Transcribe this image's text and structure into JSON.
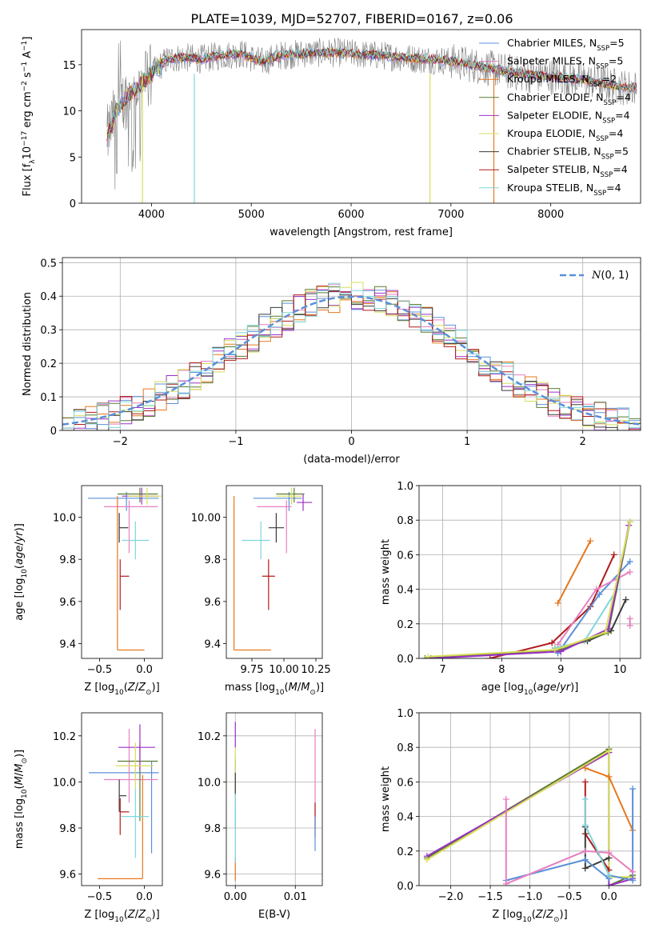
{
  "title": "PLATE=1039, MJD=52707, FIBERID=0167, z=0.06",
  "colors": {
    "Chabrier MILES": "#5b8fd9",
    "Salpeter MILES": "#e77fbf",
    "Kroupa MILES": "#e6781e",
    "Chabrier ELODIE": "#5a7a30",
    "Salpeter ELODIE": "#9b30c8",
    "Kroupa ELODIE": "#d8de5a",
    "Chabrier STELIB": "#3a3a3a",
    "Salpeter STELIB": "#b01a1a",
    "Kroupa STELIB": "#7fd6dc",
    "data": "#808080"
  },
  "chart_data": [
    {
      "id": "spectrum",
      "type": "line",
      "xlabel": "wavelength [Angstrom, rest frame]",
      "ylabel": "Flux [f_λ10^-17 erg cm^-2 s^-1 A^-1]",
      "xlim": [
        3300,
        8900
      ],
      "ylim": [
        0,
        18.8
      ],
      "xticks": [
        4000,
        5000,
        6000,
        7000,
        8000
      ],
      "yticks": [
        0,
        5,
        10,
        15
      ],
      "grid": false,
      "legend_position": "top-right",
      "legend": [
        {
          "name": "Chabrier MILES",
          "nssp": "5"
        },
        {
          "name": "Salpeter MILES",
          "nssp": "5"
        },
        {
          "name": "Kroupa MILES",
          "nssp": "2"
        },
        {
          "name": "Chabrier ELODIE",
          "nssp": "4"
        },
        {
          "name": "Salpeter ELODIE",
          "nssp": "4"
        },
        {
          "name": "Kroupa ELODIE",
          "nssp": "4"
        },
        {
          "name": "Chabrier STELIB",
          "nssp": "5"
        },
        {
          "name": "Salpeter STELIB",
          "nssp": "4"
        },
        {
          "name": "Kroupa STELIB",
          "nssp": "4"
        }
      ],
      "data_shape": {
        "x": [
          3550,
          3650,
          3750,
          3850,
          3950,
          4050,
          4150,
          4300,
          4500,
          4700,
          4900,
          5100,
          5300,
          5500,
          5700,
          5900,
          6100,
          6300,
          6500,
          6700,
          6900,
          7100,
          7300,
          7500,
          7700,
          7900,
          8100,
          8300,
          8500,
          8700,
          8800
        ],
        "y": [
          7,
          10,
          11.5,
          12.5,
          13.5,
          14.5,
          15.5,
          15.8,
          15.6,
          16.0,
          16.2,
          15.3,
          16.0,
          16.2,
          16.3,
          16.3,
          16.1,
          16.0,
          15.8,
          15.6,
          15.5,
          15.2,
          14.8,
          14.4,
          14.0,
          13.8,
          13.6,
          13.4,
          13.0,
          12.6,
          12.5
        ]
      },
      "model_drops": [
        {
          "series": "Kroupa ELODIE",
          "x": 3910
        },
        {
          "series": "Kroupa STELIB",
          "x": 4430
        },
        {
          "series": "Kroupa ELODIE",
          "x": 6790
        },
        {
          "series": "Kroupa MILES",
          "x": 7430
        }
      ]
    },
    {
      "id": "residuals",
      "type": "line",
      "xlabel": "(data-model)/error",
      "ylabel": "Normed distribution",
      "xlim": [
        -2.5,
        2.5
      ],
      "ylim": [
        0,
        0.515
      ],
      "xticks": [
        -2,
        -1,
        0,
        1,
        2
      ],
      "yticks": [
        0.0,
        0.1,
        0.2,
        0.3,
        0.4,
        0.5
      ],
      "grid": true,
      "legend_position": "top-right",
      "legend_label": "N(0,1)",
      "bin_width": 0.1,
      "gaussian": {
        "mean": 0,
        "sigma": 1
      }
    },
    {
      "id": "age_vs_Z",
      "type": "scatter",
      "xlabel": "Z [log10(Z/Z☉)]",
      "ylabel": "age  [log10(age/yr)]",
      "xlim": [
        -0.7,
        0.2
      ],
      "ylim": [
        9.33,
        10.15
      ],
      "xticks": [
        -0.5,
        0.0
      ],
      "yticks": [
        9.4,
        9.6,
        9.8,
        10.0
      ],
      "grid": false,
      "points": [
        {
          "series": "Chabrier MILES",
          "x": -0.2,
          "y": 10.09,
          "xerr": [
            0.43,
            0.36
          ],
          "yerr": [
            0.06,
            0.03
          ]
        },
        {
          "series": "Salpeter MILES",
          "x": -0.17,
          "y": 10.05,
          "xerr": [
            0.28,
            0.32
          ],
          "yerr": [
            0.22,
            0.03
          ]
        },
        {
          "series": "Kroupa MILES",
          "x": -0.3,
          "y": 9.37,
          "xerr": [
            0.0,
            0.3
          ],
          "yerr": [
            0.0,
            0.73
          ]
        },
        {
          "series": "Chabrier ELODIE",
          "x": -0.05,
          "y": 10.11,
          "xerr": [
            0.25,
            0.2
          ],
          "yerr": [
            0.04,
            0.03
          ]
        },
        {
          "series": "Salpeter ELODIE",
          "x": -0.03,
          "y": 10.1,
          "xerr": [
            0.22,
            0.18
          ],
          "yerr": [
            0.04,
            0.04
          ]
        },
        {
          "series": "Kroupa ELODIE",
          "x": 0.03,
          "y": 10.1,
          "xerr": [
            0.22,
            0.16
          ],
          "yerr": [
            0.04,
            0.04
          ]
        },
        {
          "series": "Chabrier STELIB",
          "x": -0.28,
          "y": 9.95,
          "xerr": [
            0.0,
            0.1
          ],
          "yerr": [
            0.07,
            0.07
          ]
        },
        {
          "series": "Salpeter STELIB",
          "x": -0.27,
          "y": 9.72,
          "xerr": [
            0.0,
            0.1
          ],
          "yerr": [
            0.16,
            0.08
          ]
        },
        {
          "series": "Kroupa STELIB",
          "x": -0.1,
          "y": 9.89,
          "xerr": [
            0.15,
            0.15
          ],
          "yerr": [
            0.09,
            0.09
          ]
        }
      ]
    },
    {
      "id": "age_vs_mass",
      "type": "scatter",
      "xlabel": "mass [log10(M/M☉)]",
      "ylabel": "",
      "xlim": [
        9.55,
        10.3
      ],
      "ylim": [
        9.33,
        10.15
      ],
      "xticks": [
        9.75,
        10.0,
        10.25
      ],
      "yticks": [
        9.4,
        9.6,
        9.8,
        10.0
      ],
      "grid": false,
      "points": [
        {
          "series": "Chabrier MILES",
          "x": 10.04,
          "y": 10.09,
          "xerr": [
            0.28,
            0.1
          ],
          "yerr": [
            0.06,
            0.03
          ]
        },
        {
          "series": "Salpeter MILES",
          "x": 10.02,
          "y": 10.05,
          "xerr": [
            0.23,
            0.04
          ],
          "yerr": [
            0.22,
            0.03
          ]
        },
        {
          "series": "Kroupa MILES",
          "x": 9.61,
          "y": 9.37,
          "xerr": [
            0.0,
            0.29
          ],
          "yerr": [
            0.0,
            0.73
          ]
        },
        {
          "series": "Chabrier ELODIE",
          "x": 10.08,
          "y": 10.11,
          "xerr": [
            0.14,
            0.08
          ],
          "yerr": [
            0.04,
            0.03
          ]
        },
        {
          "series": "Salpeter ELODIE",
          "x": 10.15,
          "y": 10.07,
          "xerr": [
            0.05,
            0.07
          ],
          "yerr": [
            0.04,
            0.04
          ]
        },
        {
          "series": "Kroupa ELODIE",
          "x": 10.06,
          "y": 10.1,
          "xerr": [
            0.12,
            0.08
          ],
          "yerr": [
            0.04,
            0.04
          ]
        },
        {
          "series": "Chabrier STELIB",
          "x": 9.94,
          "y": 9.95,
          "xerr": [
            0.06,
            0.06
          ],
          "yerr": [
            0.07,
            0.07
          ]
        },
        {
          "series": "Salpeter STELIB",
          "x": 9.88,
          "y": 9.72,
          "xerr": [
            0.05,
            0.05
          ],
          "yerr": [
            0.16,
            0.08
          ]
        },
        {
          "series": "Kroupa STELIB",
          "x": 9.82,
          "y": 9.89,
          "xerr": [
            0.15,
            0.07
          ],
          "yerr": [
            0.09,
            0.09
          ]
        }
      ]
    },
    {
      "id": "weight_vs_age",
      "type": "line",
      "xlabel": "age  [log10(age/yr)]",
      "ylabel": "mass weight",
      "xlim": [
        6.6,
        10.35
      ],
      "ylim": [
        0,
        1.0
      ],
      "xticks": [
        7,
        8,
        9,
        10
      ],
      "yticks": [
        0.0,
        0.2,
        0.4,
        0.6,
        0.8,
        1.0
      ],
      "grid": true,
      "series": [
        {
          "name": "Kroupa MILES",
          "x": [
            8.95,
            9.5
          ],
          "y": [
            0.32,
            0.68
          ]
        },
        {
          "name": "Salpeter STELIB",
          "x": [
            7.8,
            8.85,
            9.5,
            9.9
          ],
          "y": [
            0.0,
            0.09,
            0.3,
            0.6
          ]
        },
        {
          "name": "Chabrier STELIB",
          "x": [
            8.9,
            9.45,
            9.85,
            10.1
          ],
          "y": [
            0.06,
            0.1,
            0.16,
            0.34
          ]
        },
        {
          "name": "Chabrier MILES",
          "x": [
            8.95,
            9.65,
            10.17
          ],
          "y": [
            0.03,
            0.37,
            0.56
          ]
        },
        {
          "name": "Salpeter MILES",
          "x": [
            8.95,
            9.6,
            10.17
          ],
          "y": [
            0.08,
            0.4,
            0.5
          ]
        },
        {
          "name": "Kroupa STELIB",
          "x": [
            8.9,
            9.4,
            9.95
          ],
          "y": [
            0.06,
            0.1,
            0.4
          ]
        },
        {
          "name": "Chabrier ELODIE",
          "x": [
            6.7,
            9.0,
            9.8,
            10.17
          ],
          "y": [
            0.0,
            0.05,
            0.15,
            0.79
          ]
        },
        {
          "name": "Salpeter ELODIE",
          "x": [
            6.8,
            9.0,
            9.8,
            10.15
          ],
          "y": [
            0.0,
            0.04,
            0.17,
            0.77
          ]
        },
        {
          "name": "Kroupa ELODIE",
          "x": [
            6.75,
            8.9,
            9.75,
            10.17
          ],
          "y": [
            0.01,
            0.05,
            0.15,
            0.79
          ]
        },
        {
          "name": "Salpeter MILES",
          "x": [
            10.17,
            10.17
          ],
          "y": [
            0.19,
            0.23
          ]
        }
      ]
    },
    {
      "id": "mass_vs_Z",
      "type": "scatter",
      "xlabel": "Z [log10(Z/Z☉)]",
      "ylabel": "mass [log10(M/M☉)]",
      "xlim": [
        -0.7,
        0.2
      ],
      "ylim": [
        9.55,
        10.3
      ],
      "xticks": [
        -0.5,
        0.0
      ],
      "yticks": [
        9.6,
        9.8,
        10.0,
        10.2
      ],
      "grid": false,
      "points": [
        {
          "series": "Chabrier MILES",
          "x": 0.08,
          "y": 10.04,
          "xerr": [
            0.7,
            0.08
          ],
          "yerr": [
            0.35,
            0.05
          ]
        },
        {
          "series": "Salpeter MILES",
          "x": -0.17,
          "y": 10.01,
          "xerr": [
            0.28,
            0.32
          ],
          "yerr": [
            0.1,
            0.22
          ]
        },
        {
          "series": "Kroupa MILES",
          "x": -0.02,
          "y": 9.58,
          "xerr": [
            0.5,
            0.0
          ],
          "yerr": [
            0.0,
            0.45
          ]
        },
        {
          "series": "Chabrier ELODIE",
          "x": -0.05,
          "y": 10.09,
          "xerr": [
            0.25,
            0.2
          ],
          "yerr": [
            0.26,
            0.08
          ]
        },
        {
          "series": "Salpeter ELODIE",
          "x": -0.05,
          "y": 10.15,
          "xerr": [
            0.24,
            0.17
          ],
          "yerr": [
            0.1,
            0.1
          ]
        },
        {
          "series": "Kroupa ELODIE",
          "x": -0.1,
          "y": 10.07,
          "xerr": [
            0.22,
            0.2
          ],
          "yerr": [
            0.1,
            0.1
          ]
        },
        {
          "series": "Chabrier STELIB",
          "x": -0.28,
          "y": 9.94,
          "xerr": [
            0.0,
            0.08
          ],
          "yerr": [
            0.07,
            0.07
          ]
        },
        {
          "series": "Salpeter STELIB",
          "x": -0.27,
          "y": 9.87,
          "xerr": [
            0.0,
            0.1
          ],
          "yerr": [
            0.1,
            0.06
          ]
        },
        {
          "series": "Kroupa STELIB",
          "x": -0.1,
          "y": 9.85,
          "xerr": [
            0.16,
            0.15
          ],
          "yerr": [
            0.18,
            0.12
          ]
        }
      ]
    },
    {
      "id": "mass_vs_EBV",
      "type": "scatter",
      "xlabel": "E(B-V)",
      "ylabel": "",
      "xlim": [
        -0.0015,
        0.0145
      ],
      "ylim": [
        9.55,
        10.3
      ],
      "xticks": [
        0.0,
        0.01
      ],
      "yticks": [
        9.6,
        9.8,
        10.0,
        10.2
      ],
      "grid": true,
      "points": [
        {
          "series": "Chabrier MILES",
          "x": 0.0,
          "y": 9.9,
          "xerr": [
            0,
            0
          ],
          "yerr": [
            0.1,
            0.2
          ]
        },
        {
          "series": "Salpeter MILES",
          "x": 0.0133,
          "y": 10.0,
          "xerr": [
            0,
            0
          ],
          "yerr": [
            0.2,
            0.23
          ]
        },
        {
          "series": "Kroupa MILES",
          "x": 0.0,
          "y": 9.62,
          "xerr": [
            0,
            0
          ],
          "yerr": [
            0.05,
            0.05
          ]
        },
        {
          "series": "Salpeter ELODIE",
          "x": 0.0,
          "y": 10.2,
          "xerr": [
            0,
            0
          ],
          "yerr": [
            0.05,
            0.06
          ]
        },
        {
          "series": "Kroupa ELODIE",
          "x": 0.0,
          "y": 10.05,
          "xerr": [
            0,
            0
          ],
          "yerr": [
            0.15,
            0.1
          ]
        },
        {
          "series": "Chabrier STELIB",
          "x": 0.0,
          "y": 9.99,
          "xerr": [
            0,
            0
          ],
          "yerr": [
            0.05,
            0.05
          ]
        },
        {
          "series": "Salpeter STELIB",
          "x": 0.0133,
          "y": 9.84,
          "xerr": [
            0,
            0
          ],
          "yerr": [
            0.08,
            0.07
          ]
        },
        {
          "series": "Kroupa STELIB",
          "x": 0.0,
          "y": 9.8,
          "xerr": [
            0,
            0
          ],
          "yerr": [
            0.15,
            0.15
          ]
        },
        {
          "series": "Chabrier MILES",
          "x": 0.0133,
          "y": 9.8,
          "xerr": [
            0,
            0
          ],
          "yerr": [
            0.1,
            0.05
          ]
        }
      ]
    },
    {
      "id": "weight_vs_Z",
      "type": "line",
      "xlabel": "Z [log10(Z/Z☉)]",
      "ylabel": "mass weight",
      "xlim": [
        -2.4,
        0.4
      ],
      "ylim": [
        0,
        1.0
      ],
      "xticks": [
        -2.0,
        -1.5,
        -1.0,
        -0.5,
        0.0
      ],
      "yticks": [
        0.0,
        0.2,
        0.4,
        0.6,
        0.8,
        1.0
      ],
      "grid": true,
      "series": [
        {
          "name": "Chabrier ELODIE",
          "x": [
            -2.3,
            0.0,
            0.0,
            0.3
          ],
          "y": [
            0.16,
            0.79,
            0.0,
            0.06
          ]
        },
        {
          "name": "Salpeter ELODIE",
          "x": [
            -2.3,
            0.0,
            0.0,
            0.3
          ],
          "y": [
            0.17,
            0.77,
            0.0,
            0.04
          ]
        },
        {
          "name": "Kroupa ELODIE",
          "x": [
            -2.3,
            0.0,
            0.0,
            0.3
          ],
          "y": [
            0.15,
            0.78,
            0.05,
            0.05
          ]
        },
        {
          "name": "Kroupa MILES",
          "x": [
            -0.3,
            0.0,
            0.3
          ],
          "y": [
            0.68,
            0.63,
            0.32
          ]
        },
        {
          "name": "Salpeter STELIB",
          "x": [
            -0.3,
            -0.3,
            0.0
          ],
          "y": [
            0.6,
            0.3,
            0.09
          ]
        },
        {
          "name": "Chabrier STELIB",
          "x": [
            -0.3,
            -0.3,
            0.0
          ],
          "y": [
            0.34,
            0.1,
            0.16
          ]
        },
        {
          "name": "Chabrier MILES",
          "x": [
            -1.3,
            -0.3,
            0.0,
            0.0,
            0.3,
            0.3
          ],
          "y": [
            0.03,
            0.15,
            0.04,
            0.06,
            0.03,
            0.56
          ]
        },
        {
          "name": "Salpeter MILES",
          "x": [
            -1.3,
            -1.3,
            -0.3,
            0.0,
            0.3
          ],
          "y": [
            0.5,
            0.01,
            0.2,
            0.19,
            0.08
          ]
        },
        {
          "name": "Kroupa STELIB",
          "x": [
            -0.3,
            -0.3,
            0.0
          ],
          "y": [
            0.5,
            0.35,
            0.06
          ]
        }
      ]
    }
  ]
}
